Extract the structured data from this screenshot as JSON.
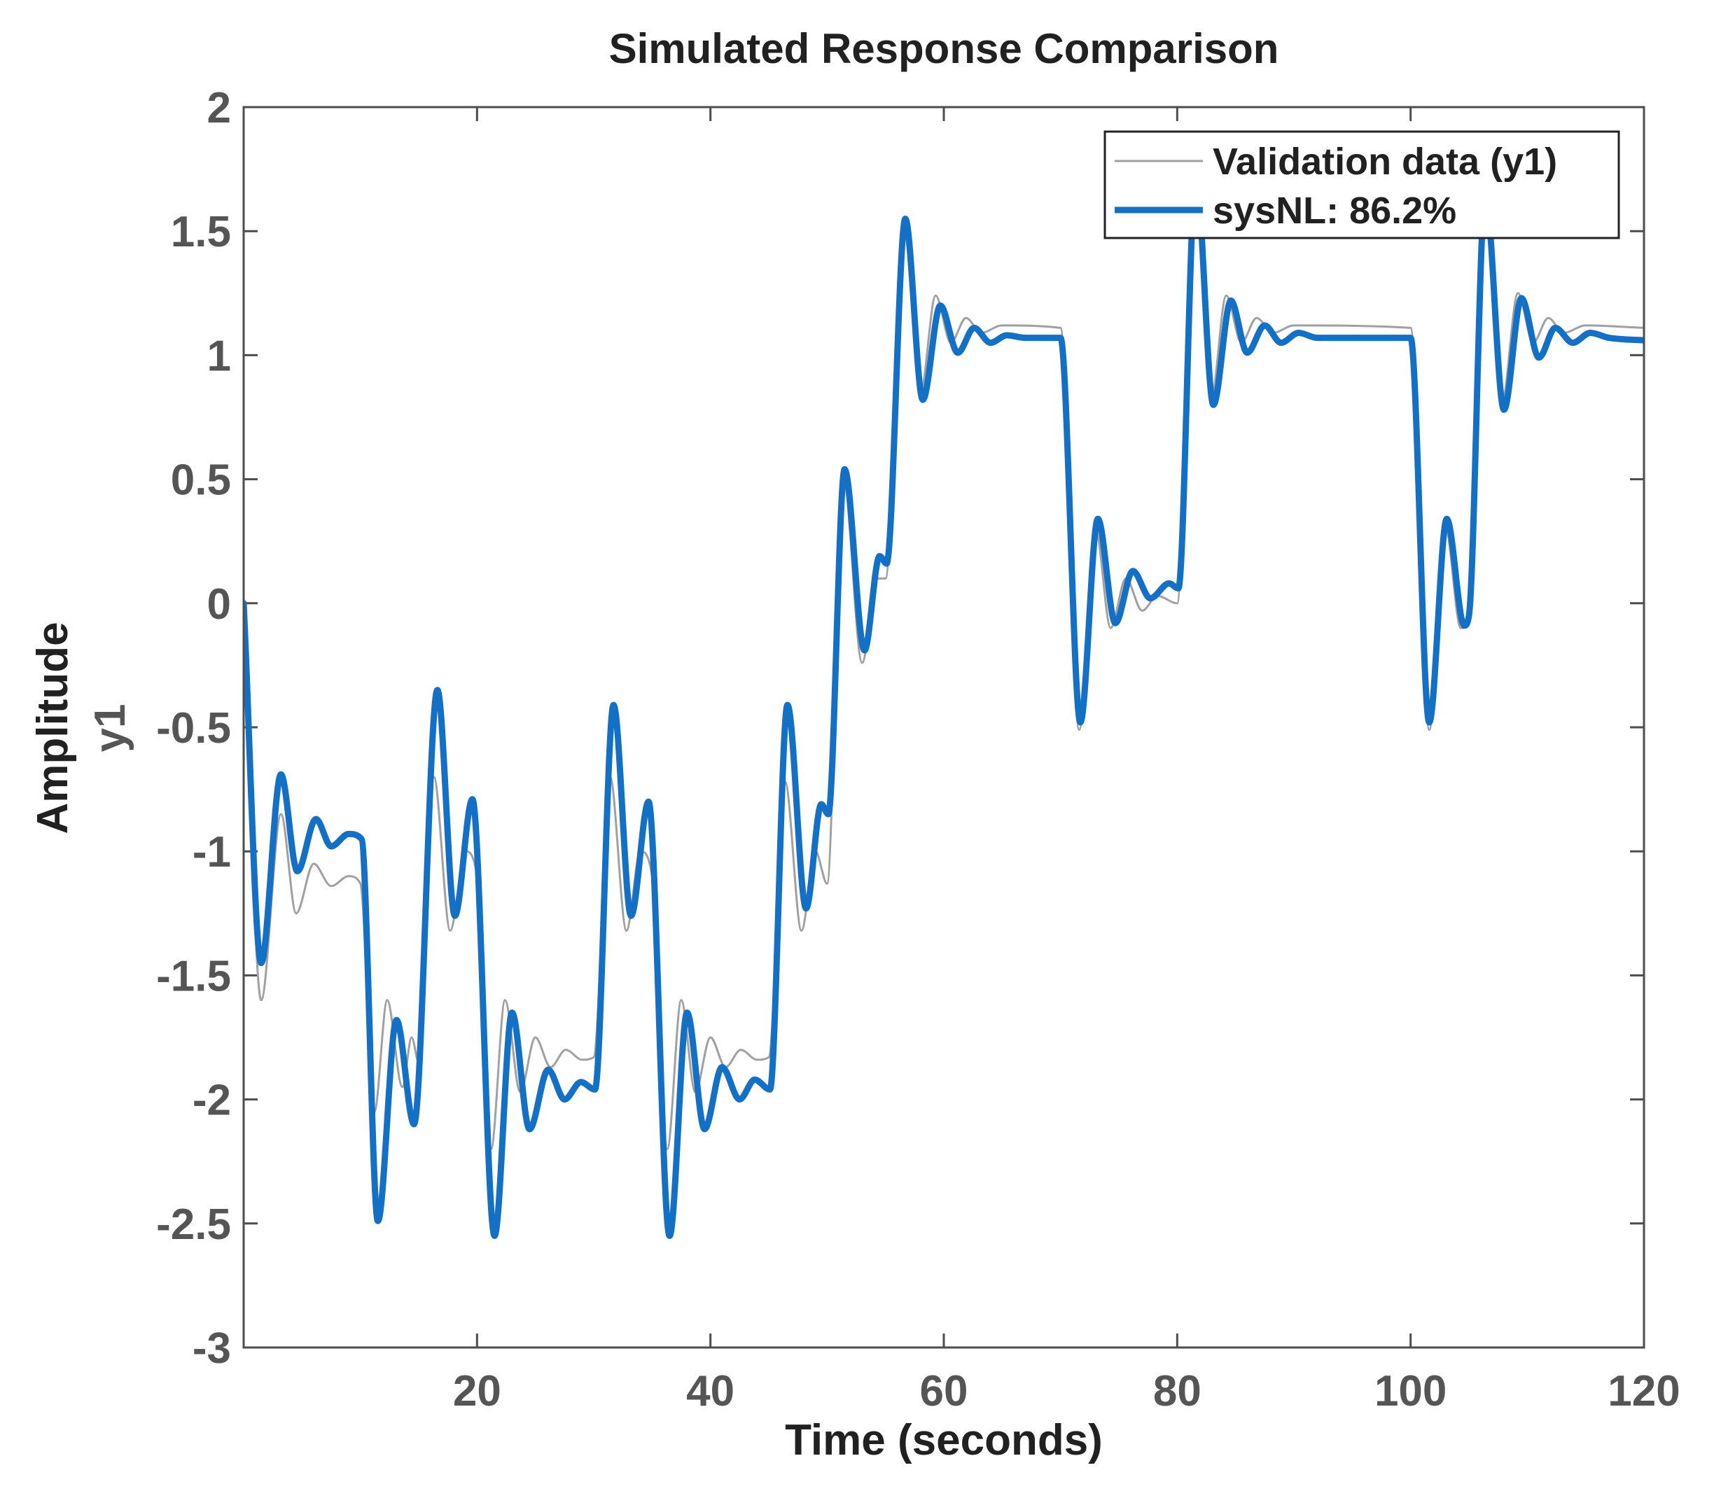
{
  "chart_data": {
    "type": "line",
    "title": "Simulated Response Comparison",
    "xlabel": "Time (seconds)",
    "ylabel": "Amplitude",
    "ylabel_channel": "y1",
    "xlim": [
      0,
      120
    ],
    "ylim": [
      -3,
      2
    ],
    "xticks": [
      20,
      40,
      60,
      80,
      100,
      120
    ],
    "xtick_labels": [
      "20",
      "40",
      "60",
      "80",
      "100",
      "120"
    ],
    "yticks": [
      2,
      1.5,
      1,
      0.5,
      0,
      -0.5,
      -1,
      -1.5,
      -2,
      -2.5,
      -3
    ],
    "ytick_labels": [
      "2",
      "1.5",
      "1",
      "0.5",
      "0",
      "-0.5",
      "-1",
      "-1.5",
      "-2",
      "-2.5",
      "-3"
    ],
    "grid": false,
    "legend_position": "top-right",
    "series": [
      {
        "name": "Validation data (y1)",
        "color": "#a0a0a0",
        "points": [
          [
            0,
            0
          ],
          [
            1.5,
            -1.6
          ],
          [
            3.2,
            -0.85
          ],
          [
            4.5,
            -1.25
          ],
          [
            6,
            -1.05
          ],
          [
            7.5,
            -1.14
          ],
          [
            9,
            -1.1
          ],
          [
            10,
            -1.13
          ],
          [
            11.2,
            -2.05
          ],
          [
            12.3,
            -1.6
          ],
          [
            13.6,
            -1.95
          ],
          [
            14.4,
            -1.75
          ],
          [
            15,
            -1.85
          ],
          [
            16.3,
            -0.7
          ],
          [
            17.7,
            -1.32
          ],
          [
            19,
            -1.0
          ],
          [
            20,
            -1.1
          ],
          [
            21.2,
            -2.2
          ],
          [
            22.4,
            -1.6
          ],
          [
            23.7,
            -1.97
          ],
          [
            25,
            -1.75
          ],
          [
            26.3,
            -1.87
          ],
          [
            27.6,
            -1.8
          ],
          [
            29,
            -1.84
          ],
          [
            30,
            -1.83
          ],
          [
            31.4,
            -0.7
          ],
          [
            32.8,
            -1.32
          ],
          [
            34,
            -1.0
          ],
          [
            35,
            -1.1
          ],
          [
            36.3,
            -2.2
          ],
          [
            37.5,
            -1.6
          ],
          [
            38.7,
            -1.97
          ],
          [
            40,
            -1.75
          ],
          [
            41.3,
            -1.87
          ],
          [
            42.6,
            -1.8
          ],
          [
            44,
            -1.84
          ],
          [
            45,
            -1.83
          ],
          [
            46.4,
            -0.72
          ],
          [
            47.8,
            -1.32
          ],
          [
            49,
            -1.0
          ],
          [
            50,
            -1.13
          ],
          [
            51.4,
            0.5
          ],
          [
            53,
            -0.24
          ],
          [
            54.3,
            0.1
          ],
          [
            55,
            0.1
          ],
          [
            56.6,
            1.5
          ],
          [
            58,
            0.85
          ],
          [
            59.3,
            1.24
          ],
          [
            60.6,
            1.05
          ],
          [
            61.9,
            1.15
          ],
          [
            63.2,
            1.09
          ],
          [
            65,
            1.12
          ],
          [
            70,
            1.11
          ],
          [
            71.6,
            -0.51
          ],
          [
            73,
            0.3
          ],
          [
            74.3,
            -0.1
          ],
          [
            75.6,
            0.1
          ],
          [
            77,
            -0.03
          ],
          [
            78.3,
            0.03
          ],
          [
            80,
            0.0
          ],
          [
            81.5,
            1.7
          ],
          [
            82.9,
            0.82
          ],
          [
            84.2,
            1.24
          ],
          [
            85.5,
            1.05
          ],
          [
            86.8,
            1.15
          ],
          [
            88.2,
            1.09
          ],
          [
            90,
            1.12
          ],
          [
            100,
            1.11
          ],
          [
            101.6,
            -0.51
          ],
          [
            103,
            0.3
          ],
          [
            104.3,
            -0.1
          ],
          [
            105,
            -0.08
          ],
          [
            106.5,
            1.7
          ],
          [
            107.8,
            0.8
          ],
          [
            109.2,
            1.25
          ],
          [
            110.5,
            1.05
          ],
          [
            111.8,
            1.15
          ],
          [
            113.1,
            1.09
          ],
          [
            115,
            1.12
          ],
          [
            120,
            1.11
          ]
        ]
      },
      {
        "name": "sysNL: 86.2%",
        "color": "#1370c4",
        "points": [
          [
            0,
            0
          ],
          [
            1.5,
            -1.45
          ],
          [
            3.2,
            -0.69
          ],
          [
            4.6,
            -1.08
          ],
          [
            6.2,
            -0.87
          ],
          [
            7.5,
            -0.98
          ],
          [
            9,
            -0.93
          ],
          [
            10.1,
            -0.95
          ],
          [
            11.5,
            -2.49
          ],
          [
            13.1,
            -1.68
          ],
          [
            14.6,
            -2.1
          ],
          [
            16.6,
            -0.35
          ],
          [
            18.1,
            -1.26
          ],
          [
            19.6,
            -0.79
          ],
          [
            21.5,
            -2.55
          ],
          [
            23,
            -1.65
          ],
          [
            24.5,
            -2.12
          ],
          [
            26.1,
            -1.88
          ],
          [
            27.5,
            -2.0
          ],
          [
            28.9,
            -1.93
          ],
          [
            30.1,
            -1.96
          ],
          [
            31.7,
            -0.41
          ],
          [
            33.2,
            -1.26
          ],
          [
            34.7,
            -0.8
          ],
          [
            36.5,
            -2.55
          ],
          [
            38,
            -1.65
          ],
          [
            39.5,
            -2.12
          ],
          [
            41,
            -1.87
          ],
          [
            42.5,
            -2.0
          ],
          [
            43.8,
            -1.92
          ],
          [
            45.1,
            -1.96
          ],
          [
            46.6,
            -0.41
          ],
          [
            48.2,
            -1.23
          ],
          [
            49.5,
            -0.81
          ],
          [
            50.1,
            -0.85
          ],
          [
            51.5,
            0.54
          ],
          [
            53.2,
            -0.19
          ],
          [
            54.5,
            0.19
          ],
          [
            55.1,
            0.16
          ],
          [
            56.7,
            1.55
          ],
          [
            58.2,
            0.82
          ],
          [
            59.7,
            1.2
          ],
          [
            61.2,
            1.01
          ],
          [
            62.6,
            1.11
          ],
          [
            64,
            1.05
          ],
          [
            65.4,
            1.08
          ],
          [
            67,
            1.07
          ],
          [
            70,
            1.07
          ],
          [
            71.7,
            -0.48
          ],
          [
            73.2,
            0.34
          ],
          [
            74.7,
            -0.08
          ],
          [
            76.2,
            0.13
          ],
          [
            77.7,
            0.02
          ],
          [
            79.3,
            0.08
          ],
          [
            80.1,
            0.06
          ],
          [
            81.6,
            1.72
          ],
          [
            83.1,
            0.8
          ],
          [
            84.6,
            1.22
          ],
          [
            86,
            1.01
          ],
          [
            87.5,
            1.12
          ],
          [
            88.9,
            1.05
          ],
          [
            90.4,
            1.09
          ],
          [
            92,
            1.07
          ],
          [
            100,
            1.07
          ],
          [
            101.6,
            -0.48
          ],
          [
            103.1,
            0.34
          ],
          [
            104.6,
            -0.09
          ],
          [
            105,
            -0.05
          ],
          [
            106.4,
            1.65
          ],
          [
            108,
            0.78
          ],
          [
            109.5,
            1.23
          ],
          [
            111,
            0.99
          ],
          [
            112.4,
            1.11
          ],
          [
            113.9,
            1.05
          ],
          [
            115.4,
            1.09
          ],
          [
            117,
            1.07
          ],
          [
            120,
            1.06
          ]
        ]
      }
    ]
  }
}
